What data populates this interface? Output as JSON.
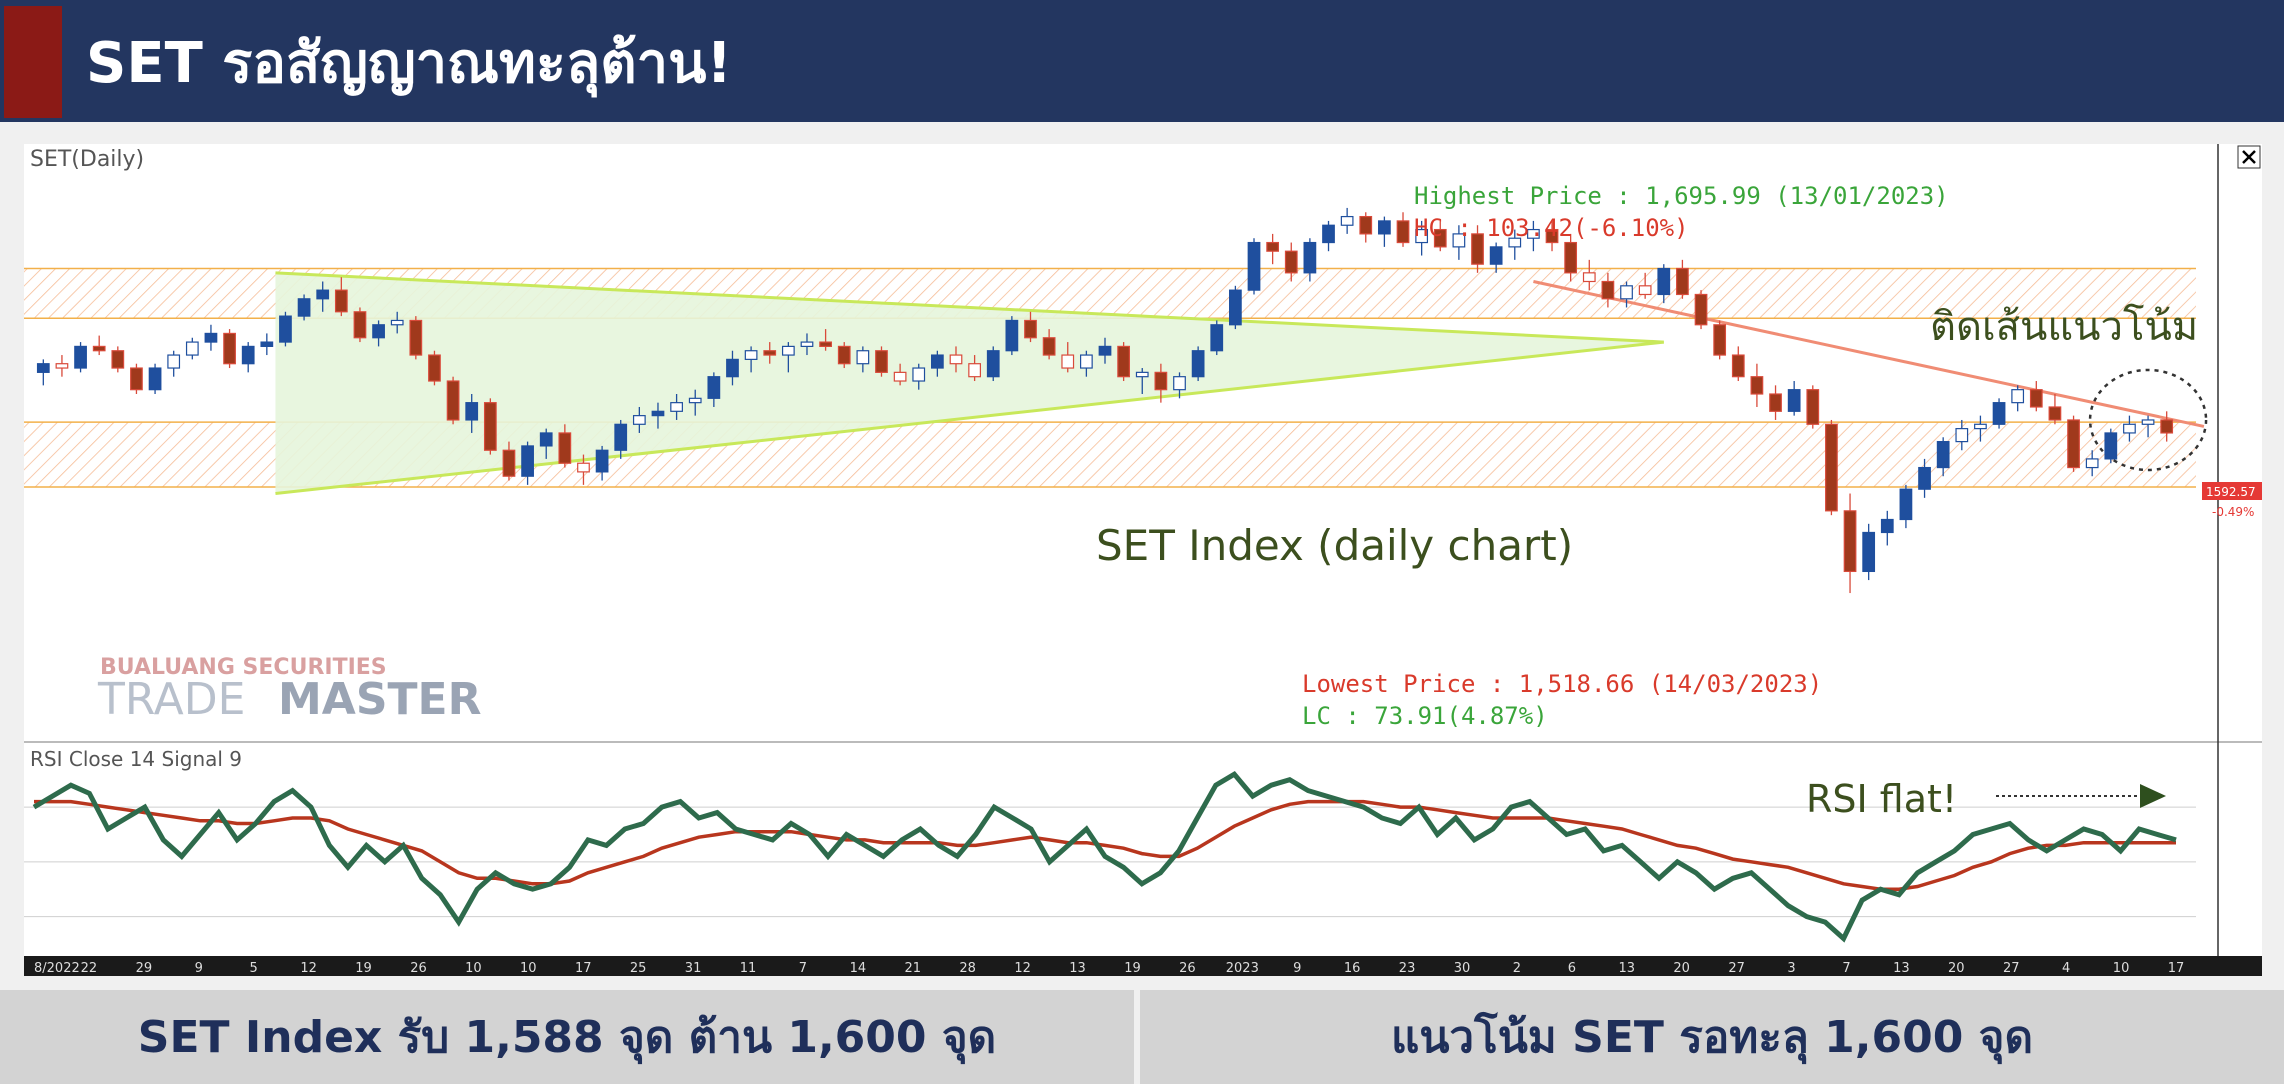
{
  "header": {
    "title": "SET รอสัญญาณทะลุต้าน!"
  },
  "colors": {
    "header_bg": "#233660",
    "accent": "#8b1a16",
    "footer_bg": "#d3d3d3",
    "footer_text": "#1f2f5a",
    "up_candle": "#1f4f9e",
    "down_candle": "#a0391c",
    "rsi_line": "#2e6b4c",
    "signal_line": "#b8361e",
    "triangle_fill": "#e6f5dc",
    "zone_hatch": "#f2a06a",
    "trendline": "#f08c74"
  },
  "chart_data": {
    "type": "candlestick",
    "title": "SET(Daily)",
    "watermark": {
      "company": "BUALUANG SECURITIES",
      "brand_light": "TRADE",
      "brand_bold": "MASTER"
    },
    "annotations": {
      "highest": "Highest Price : 1,695.99 (13/01/2023)",
      "hc": "HC : 103.42(-6.10%)",
      "lowest": "Lowest Price : 1,518.66 (14/03/2023)",
      "lc": "LC : 73.91(4.87%)",
      "trend": "ติดเส้นแนวโน้ม",
      "center": "SET Index (daily chart)",
      "rsi": "RSI flat!"
    },
    "last_price": "1592.57",
    "last_change": "-0.49%",
    "y_range": [
      1500,
      1720
    ],
    "zones": [
      [
        1645,
        1668
      ],
      [
        1567,
        1597
      ]
    ],
    "triangle": {
      "apex_date_index": 87,
      "apex": 1634,
      "top_start": 1666,
      "bottom_start": 1564,
      "start_index": 13
    },
    "trendline": {
      "from_index": 80,
      "from": 1662,
      "to_index": 116,
      "to": 1595
    },
    "candles": [
      [
        1620,
        1626,
        1614,
        1624
      ],
      [
        1624,
        1628,
        1618,
        1622
      ],
      [
        1622,
        1634,
        1620,
        1632
      ],
      [
        1632,
        1637,
        1628,
        1630
      ],
      [
        1630,
        1632,
        1620,
        1622
      ],
      [
        1622,
        1624,
        1610,
        1612
      ],
      [
        1612,
        1624,
        1610,
        1622
      ],
      [
        1622,
        1630,
        1618,
        1628
      ],
      [
        1628,
        1636,
        1626,
        1634
      ],
      [
        1634,
        1642,
        1630,
        1638
      ],
      [
        1638,
        1640,
        1622,
        1624
      ],
      [
        1624,
        1634,
        1620,
        1632
      ],
      [
        1632,
        1638,
        1628,
        1634
      ],
      [
        1634,
        1648,
        1632,
        1646
      ],
      [
        1646,
        1656,
        1644,
        1654
      ],
      [
        1654,
        1662,
        1648,
        1658
      ],
      [
        1658,
        1664,
        1646,
        1648
      ],
      [
        1648,
        1650,
        1634,
        1636
      ],
      [
        1636,
        1644,
        1632,
        1642
      ],
      [
        1642,
        1648,
        1638,
        1644
      ],
      [
        1644,
        1646,
        1626,
        1628
      ],
      [
        1628,
        1630,
        1614,
        1616
      ],
      [
        1616,
        1618,
        1596,
        1598
      ],
      [
        1598,
        1610,
        1592,
        1606
      ],
      [
        1606,
        1608,
        1582,
        1584
      ],
      [
        1584,
        1588,
        1570,
        1572
      ],
      [
        1572,
        1588,
        1568,
        1586
      ],
      [
        1586,
        1594,
        1580,
        1592
      ],
      [
        1592,
        1596,
        1576,
        1578
      ],
      [
        1578,
        1582,
        1568,
        1574
      ],
      [
        1574,
        1586,
        1570,
        1584
      ],
      [
        1584,
        1598,
        1580,
        1596
      ],
      [
        1596,
        1604,
        1592,
        1600
      ],
      [
        1600,
        1606,
        1594,
        1602
      ],
      [
        1602,
        1610,
        1598,
        1606
      ],
      [
        1606,
        1612,
        1600,
        1608
      ],
      [
        1608,
        1620,
        1604,
        1618
      ],
      [
        1618,
        1630,
        1614,
        1626
      ],
      [
        1626,
        1632,
        1620,
        1630
      ],
      [
        1630,
        1634,
        1624,
        1628
      ],
      [
        1628,
        1634,
        1620,
        1632
      ],
      [
        1632,
        1638,
        1628,
        1634
      ],
      [
        1634,
        1640,
        1630,
        1632
      ],
      [
        1632,
        1634,
        1622,
        1624
      ],
      [
        1624,
        1632,
        1620,
        1630
      ],
      [
        1630,
        1632,
        1618,
        1620
      ],
      [
        1620,
        1624,
        1614,
        1616
      ],
      [
        1616,
        1624,
        1612,
        1622
      ],
      [
        1622,
        1630,
        1618,
        1628
      ],
      [
        1628,
        1632,
        1620,
        1624
      ],
      [
        1624,
        1628,
        1616,
        1618
      ],
      [
        1618,
        1632,
        1616,
        1630
      ],
      [
        1630,
        1646,
        1628,
        1644
      ],
      [
        1644,
        1648,
        1634,
        1636
      ],
      [
        1636,
        1640,
        1626,
        1628
      ],
      [
        1628,
        1634,
        1620,
        1622
      ],
      [
        1622,
        1630,
        1618,
        1628
      ],
      [
        1628,
        1636,
        1624,
        1632
      ],
      [
        1632,
        1634,
        1616,
        1618
      ],
      [
        1618,
        1622,
        1610,
        1620
      ],
      [
        1620,
        1624,
        1606,
        1612
      ],
      [
        1612,
        1620,
        1608,
        1618
      ],
      [
        1618,
        1632,
        1616,
        1630
      ],
      [
        1630,
        1644,
        1628,
        1642
      ],
      [
        1642,
        1660,
        1640,
        1658
      ],
      [
        1658,
        1682,
        1656,
        1680
      ],
      [
        1680,
        1684,
        1670,
        1676
      ],
      [
        1676,
        1680,
        1662,
        1666
      ],
      [
        1666,
        1682,
        1662,
        1680
      ],
      [
        1680,
        1690,
        1676,
        1688
      ],
      [
        1688,
        1696,
        1684,
        1692
      ],
      [
        1692,
        1694,
        1680,
        1684
      ],
      [
        1684,
        1692,
        1678,
        1690
      ],
      [
        1690,
        1694,
        1678,
        1680
      ],
      [
        1680,
        1690,
        1674,
        1686
      ],
      [
        1686,
        1690,
        1676,
        1678
      ],
      [
        1678,
        1688,
        1672,
        1684
      ],
      [
        1684,
        1688,
        1666,
        1670
      ],
      [
        1670,
        1680,
        1666,
        1678
      ],
      [
        1678,
        1686,
        1672,
        1682
      ],
      [
        1682,
        1690,
        1676,
        1686
      ],
      [
        1686,
        1690,
        1676,
        1680
      ],
      [
        1680,
        1684,
        1662,
        1666
      ],
      [
        1666,
        1672,
        1658,
        1662
      ],
      [
        1662,
        1666,
        1650,
        1654
      ],
      [
        1654,
        1662,
        1650,
        1660
      ],
      [
        1660,
        1666,
        1654,
        1656
      ],
      [
        1656,
        1670,
        1652,
        1668
      ],
      [
        1668,
        1672,
        1654,
        1656
      ],
      [
        1656,
        1658,
        1640,
        1642
      ],
      [
        1642,
        1644,
        1626,
        1628
      ],
      [
        1628,
        1632,
        1616,
        1618
      ],
      [
        1618,
        1624,
        1604,
        1610
      ],
      [
        1610,
        1614,
        1598,
        1602
      ],
      [
        1602,
        1616,
        1600,
        1612
      ],
      [
        1612,
        1614,
        1594,
        1596
      ],
      [
        1596,
        1598,
        1554,
        1556
      ],
      [
        1556,
        1564,
        1518,
        1528
      ],
      [
        1528,
        1550,
        1524,
        1546
      ],
      [
        1546,
        1556,
        1540,
        1552
      ],
      [
        1552,
        1568,
        1548,
        1566
      ],
      [
        1566,
        1580,
        1562,
        1576
      ],
      [
        1576,
        1590,
        1572,
        1588
      ],
      [
        1588,
        1598,
        1584,
        1594
      ],
      [
        1594,
        1600,
        1588,
        1596
      ],
      [
        1596,
        1608,
        1594,
        1606
      ],
      [
        1606,
        1614,
        1602,
        1612
      ],
      [
        1612,
        1616,
        1602,
        1604
      ],
      [
        1604,
        1610,
        1596,
        1598
      ],
      [
        1598,
        1600,
        1574,
        1576
      ],
      [
        1576,
        1584,
        1572,
        1580
      ],
      [
        1580,
        1594,
        1578,
        1592
      ],
      [
        1592,
        1600,
        1588,
        1596
      ],
      [
        1596,
        1600,
        1590,
        1598
      ],
      [
        1598,
        1602,
        1588,
        1592
      ]
    ],
    "rsi": {
      "label": "RSI Close 14 Signal 9",
      "y_range": [
        20,
        85
      ],
      "rsi_values": [
        70,
        74,
        78,
        75,
        62,
        66,
        70,
        58,
        52,
        60,
        68,
        58,
        64,
        72,
        76,
        70,
        56,
        48,
        56,
        50,
        56,
        44,
        38,
        28,
        40,
        46,
        42,
        40,
        42,
        48,
        58,
        56,
        62,
        64,
        70,
        72,
        66,
        68,
        62,
        60,
        58,
        64,
        60,
        52,
        60,
        56,
        52,
        58,
        62,
        56,
        52,
        60,
        70,
        66,
        62,
        50,
        56,
        62,
        52,
        48,
        42,
        46,
        54,
        66,
        78,
        82,
        74,
        78,
        80,
        76,
        74,
        72,
        70,
        66,
        64,
        70,
        60,
        66,
        58,
        62,
        70,
        72,
        66,
        60,
        62,
        54,
        56,
        50,
        44,
        50,
        46,
        40,
        44,
        46,
        40,
        34,
        30,
        28,
        22,
        36,
        40,
        38,
        46,
        50,
        54,
        60,
        62,
        64,
        58,
        54,
        58,
        62,
        60,
        54,
        62,
        60,
        58
      ],
      "signal_values": [
        72,
        72,
        72,
        71,
        70,
        69,
        68,
        67,
        66,
        65,
        65,
        64,
        64,
        65,
        66,
        66,
        65,
        62,
        60,
        58,
        56,
        54,
        50,
        46,
        44,
        44,
        43,
        42,
        42,
        43,
        46,
        48,
        50,
        52,
        55,
        57,
        59,
        60,
        61,
        61,
        61,
        61,
        60,
        59,
        58,
        58,
        57,
        57,
        57,
        57,
        56,
        56,
        57,
        58,
        59,
        58,
        57,
        57,
        56,
        55,
        53,
        52,
        52,
        55,
        59,
        63,
        66,
        69,
        71,
        72,
        72,
        72,
        72,
        71,
        70,
        70,
        69,
        68,
        67,
        66,
        66,
        66,
        66,
        65,
        64,
        63,
        62,
        60,
        58,
        56,
        55,
        53,
        51,
        50,
        49,
        48,
        46,
        44,
        42,
        41,
        40,
        40,
        41,
        43,
        45,
        48,
        50,
        53,
        55,
        56,
        56,
        57,
        57,
        57,
        57,
        57,
        57
      ]
    },
    "x_tick_labels": [
      "8/2022",
      "22",
      "29",
      "9",
      "5",
      "12",
      "19",
      "26",
      "10",
      "10",
      "17",
      "25",
      "31",
      "11",
      "7",
      "14",
      "21",
      "28",
      "12",
      "13",
      "19",
      "26",
      "2023",
      "9",
      "16",
      "23",
      "30",
      "2",
      "6",
      "13",
      "20",
      "27",
      "3",
      "7",
      "13",
      "20",
      "27",
      "4",
      "10",
      "17"
    ]
  },
  "footer": {
    "left": "SET Index รับ 1,588 จุด ต้าน 1,600 จุด",
    "right": "แนวโน้ม SET รอทะลุ 1,600 จุด"
  }
}
